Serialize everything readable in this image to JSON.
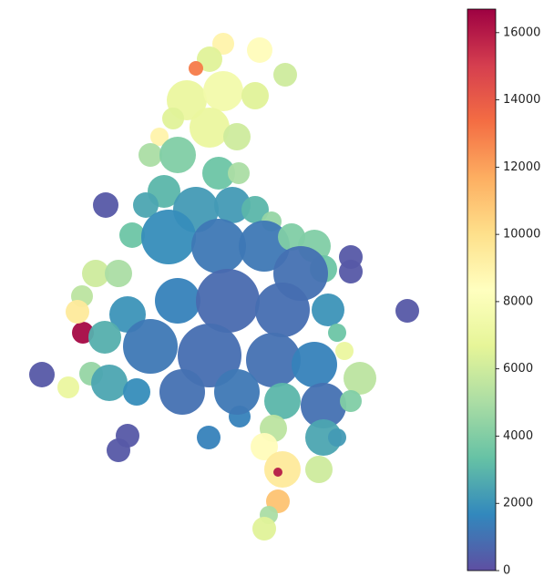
{
  "chart_data": {
    "type": "map",
    "values": [
      300,
      300,
      300,
      300,
      300,
      300,
      300,
      1500,
      1500,
      16500,
      9000,
      8500,
      6000,
      6500,
      13000,
      7000,
      7500,
      6500,
      6500,
      7000,
      6000,
      9000,
      5000,
      4000,
      3500,
      5000,
      3000,
      2500,
      2200,
      2200,
      3000,
      4500,
      3500,
      1800,
      1200,
      1200,
      4000,
      4000,
      3500,
      1000,
      6000,
      5500,
      9500,
      5000,
      2000,
      1500,
      800,
      900,
      2000,
      3500,
      2800,
      1200,
      900,
      1000,
      1500,
      7000,
      5500,
      4500,
      7000,
      2500,
      1800,
      1000,
      1200,
      3000,
      1000,
      4000,
      5500,
      8500,
      2500,
      2200,
      6000,
      9500,
      16000,
      11000,
      5000,
      6500
    ],
    "colormap": [
      "#5e4fa2",
      "#3288bd",
      "#66c2a5",
      "#abdda4",
      "#e6f598",
      "#ffffbf",
      "#fee08b",
      "#fdae61",
      "#f46d43",
      "#d53e4f",
      "#9e0142"
    ],
    "clim": [
      0,
      16700
    ],
    "cticks": [
      0,
      2000,
      4000,
      6000,
      8000,
      10000,
      12000,
      14000,
      16000
    ]
  }
}
